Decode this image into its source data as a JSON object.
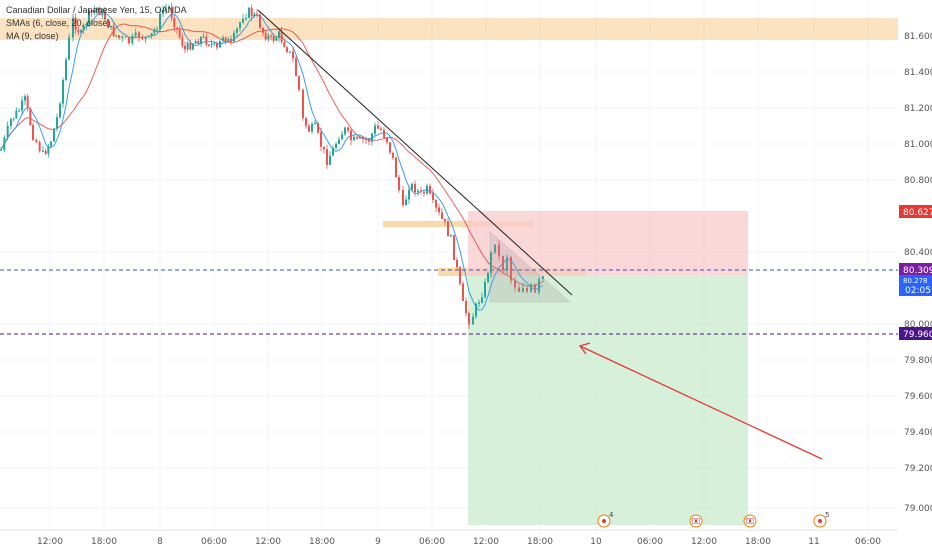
{
  "legend": {
    "symbol": "Canadian Dollar / Japanese Yen, 15, OANDA",
    "sma": "SMAs (6, close, 20, close)",
    "ma": "MA (9, close)"
  },
  "price_axis": {
    "ticks": [
      "81.600",
      "81.400",
      "81.200",
      "81.000",
      "80.800",
      "80.400",
      "80.000",
      "79.800",
      "79.600",
      "79.400",
      "79.200",
      "79.000"
    ]
  },
  "price_tags": {
    "stop": "80.627",
    "last": "80.309",
    "entry": "80.278",
    "countdown": "02:05",
    "target": "79.960"
  },
  "time_axis": {
    "labels": [
      "12:00",
      "18:00",
      "8",
      "06:00",
      "12:00",
      "18:00",
      "9",
      "06:00",
      "12:00",
      "18:00",
      "10",
      "06:00",
      "12:00",
      "18:00",
      "11",
      "06:00"
    ]
  },
  "events": [
    {
      "icon": "news-icon",
      "count": "4"
    },
    {
      "icon": "canada-flag-icon",
      "count": ""
    },
    {
      "icon": "canada-flag-icon",
      "count": ""
    },
    {
      "icon": "news-icon",
      "count": "5"
    }
  ],
  "colors": {
    "bull": "#26a69a",
    "bear": "#ef5350",
    "sma_fast": "#2196f3",
    "sma_slow": "#e53935",
    "zone": "#f9cf96",
    "stop_zone": "#f8c9cc",
    "target_zone": "#c9ebce",
    "purple_tag": "#7b1fa2",
    "blue_tag": "#2962ff",
    "arrow": "#e53935"
  }
}
